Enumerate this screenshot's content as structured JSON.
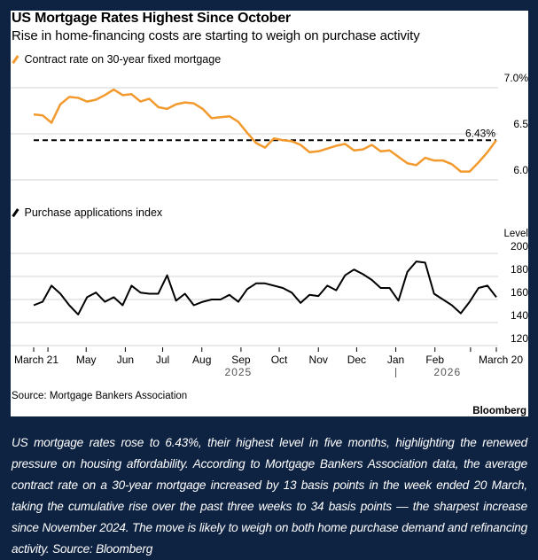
{
  "chart_data": [
    {
      "type": "line",
      "title": "US Mortgage Rates Highest Since October",
      "subtitle": "Rise in home-financing costs are starting to weigh on purchase activity",
      "series": [
        {
          "name": "Contract rate on 30-year fixed mortgage",
          "color": "#f29a2e",
          "values": [
            6.71,
            6.7,
            6.62,
            6.82,
            6.9,
            6.89,
            6.85,
            6.87,
            6.92,
            6.98,
            6.92,
            6.93,
            6.85,
            6.88,
            6.79,
            6.77,
            6.82,
            6.84,
            6.83,
            6.77,
            6.67,
            6.68,
            6.69,
            6.63,
            6.51,
            6.4,
            6.35,
            6.45,
            6.43,
            6.42,
            6.38,
            6.3,
            6.31,
            6.34,
            6.37,
            6.39,
            6.32,
            6.33,
            6.38,
            6.31,
            6.32,
            6.25,
            6.18,
            6.16,
            6.24,
            6.21,
            6.21,
            6.17,
            6.09,
            6.09,
            6.19,
            6.3,
            6.43
          ]
        }
      ],
      "reference_line": {
        "value": 6.43,
        "label": "6.43%",
        "style": "dashed",
        "color": "#000000"
      },
      "yticks": [
        {
          "value": 7.0,
          "label": "7.0%"
        },
        {
          "value": 6.5,
          "label": "6.5"
        },
        {
          "value": 6.0,
          "label": "6.0"
        }
      ],
      "ylim": [
        6.0,
        7.0
      ],
      "grid": true,
      "ylabel": ""
    },
    {
      "type": "line",
      "series": [
        {
          "name": "Purchase applications index",
          "color": "#000000",
          "values": [
            155,
            158,
            172,
            165,
            155,
            147,
            162,
            166,
            158,
            162,
            155,
            172,
            166,
            165,
            165,
            181,
            159,
            165,
            155,
            158,
            160,
            160,
            164,
            158,
            169,
            174,
            174,
            172,
            170,
            166,
            157,
            164,
            163,
            172,
            168,
            181,
            186,
            182,
            177,
            170,
            170,
            159,
            184,
            193,
            192,
            165,
            160,
            155,
            148,
            158,
            170,
            172,
            162
          ]
        }
      ],
      "ylabel": "Level",
      "yticks": [
        {
          "value": 200,
          "label": "200"
        },
        {
          "value": 180,
          "label": "180"
        },
        {
          "value": 160,
          "label": "160"
        },
        {
          "value": 140,
          "label": "140"
        },
        {
          "value": 120,
          "label": "120"
        }
      ],
      "ylim": [
        120,
        200
      ],
      "grid": true
    }
  ],
  "x_axis": {
    "weeks": 53,
    "ticks": [
      {
        "week": 0,
        "label": "March 21"
      },
      {
        "week": 1.6,
        "label": ""
      },
      {
        "week": 5.9,
        "label": "May"
      },
      {
        "week": 10.3,
        "label": "Jun"
      },
      {
        "week": 14.5,
        "label": "Jul"
      },
      {
        "week": 18.9,
        "label": "Aug"
      },
      {
        "week": 23.3,
        "label": "Sep"
      },
      {
        "week": 27.6,
        "label": "Oct"
      },
      {
        "week": 32.0,
        "label": "Nov"
      },
      {
        "week": 36.3,
        "label": "Dec"
      },
      {
        "week": 40.7,
        "label": "Jan"
      },
      {
        "week": 45.1,
        "label": "Feb"
      },
      {
        "week": 49.1,
        "label": ""
      },
      {
        "week": 52,
        "label": "March 20"
      }
    ],
    "years": [
      {
        "week": 23.0,
        "label": "2025"
      },
      {
        "week": 46.5,
        "label": "2026"
      }
    ],
    "year_divider_week": 40.7
  },
  "header": {
    "title": "US Mortgage Rates Highest Since October",
    "subtitle": "Rise in home-financing costs are starting to weigh on purchase activity"
  },
  "legend": {
    "rate": "Contract rate on 30-year fixed mortgage",
    "index": "Purchase applications index"
  },
  "footer": {
    "source": "Source: Mortgage Bankers Association",
    "brand": "Bloomberg"
  },
  "caption": "US mortgage rates rose to 6.43%, their highest level in five months, highlighting the renewed pressure on housing affordability. According to Mortgage Bankers Association data, the average contract rate on a 30-year mortgage increased by 13 basis points in the week ended 20 March, taking the cumulative rise over the past three weeks to 34 basis points — the sharpest increase since November 2024. The move is likely to weigh on both home purchase demand and refinancing activity. Source: Bloomberg"
}
